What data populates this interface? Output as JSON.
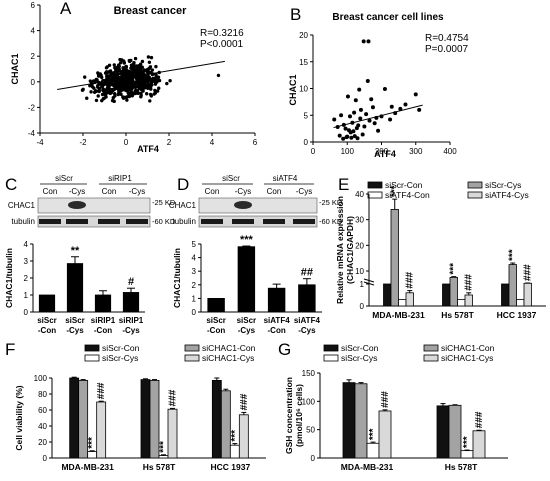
{
  "chart_data": [
    {
      "panel": "A",
      "type": "scatter",
      "title": "Breast cancer",
      "xlabel": "ATF4",
      "ylabel": "CHAC1",
      "xlim": [
        -4,
        6
      ],
      "ylim": [
        -4,
        6
      ],
      "xticks": [
        "-4",
        "-2",
        "0",
        "2",
        "4",
        "6"
      ],
      "yticks": [
        "-4",
        "-2",
        "0",
        "2",
        "4",
        "6"
      ],
      "stats": [
        "R=0.3216",
        "P<0.0001"
      ],
      "fit": {
        "x": [
          -3.2,
          4.6
        ],
        "y": [
          -0.6,
          1.6
        ]
      }
    },
    {
      "panel": "B",
      "type": "scatter",
      "title": "Breast cancer cell lines",
      "xlabel": "ATF4",
      "ylabel": "CHAC1",
      "xlim": [
        0,
        400
      ],
      "ylim": [
        0,
        20
      ],
      "xticks": [
        "0",
        "100",
        "200",
        "300",
        "400"
      ],
      "yticks": [
        "0",
        "5",
        "10",
        "15",
        "20"
      ],
      "stats": [
        "R=0.4754",
        "P=0.0007"
      ],
      "fit": {
        "x": [
          60,
          320
        ],
        "y": [
          2.7,
          6.9
        ]
      },
      "points": [
        [
          62,
          4.2
        ],
        [
          72,
          2.8
        ],
        [
          78,
          1.2
        ],
        [
          82,
          5.0
        ],
        [
          88,
          0.6
        ],
        [
          90,
          3.2
        ],
        [
          95,
          2.5
        ],
        [
          98,
          0.9
        ],
        [
          100,
          1.0
        ],
        [
          102,
          8.5
        ],
        [
          105,
          2.2
        ],
        [
          108,
          4.8
        ],
        [
          110,
          1.8
        ],
        [
          112,
          0.8
        ],
        [
          115,
          3.6
        ],
        [
          118,
          2.0
        ],
        [
          120,
          5.5
        ],
        [
          122,
          1.1
        ],
        [
          125,
          7.8
        ],
        [
          128,
          2.6
        ],
        [
          130,
          0.7
        ],
        [
          132,
          3.1
        ],
        [
          135,
          9.8
        ],
        [
          138,
          4.4
        ],
        [
          140,
          6.0
        ],
        [
          145,
          1.4
        ],
        [
          148,
          18.8
        ],
        [
          150,
          2.9
        ],
        [
          155,
          5.2
        ],
        [
          160,
          11.4
        ],
        [
          162,
          18.8
        ],
        [
          165,
          4.0
        ],
        [
          170,
          8.0
        ],
        [
          175,
          6.5
        ],
        [
          180,
          3.5
        ],
        [
          185,
          4.5
        ],
        [
          190,
          2.1
        ],
        [
          200,
          4.8
        ],
        [
          210,
          9.9
        ],
        [
          225,
          4.2
        ],
        [
          230,
          6.6
        ],
        [
          240,
          5.4
        ],
        [
          255,
          6.2
        ],
        [
          270,
          7.0
        ],
        [
          300,
          8.9
        ],
        [
          310,
          6.0
        ]
      ]
    },
    {
      "panel": "C",
      "type": "bar",
      "ylabel": "CHAC1/tubulin",
      "ylim": [
        0,
        4
      ],
      "yticks": [
        "0",
        "1",
        "2",
        "3",
        "4"
      ],
      "categories": [
        [
          "siScr",
          "-Con"
        ],
        [
          "siScr",
          "-Cys"
        ],
        [
          "siRIP1",
          "-Con"
        ],
        [
          "siRIP1",
          "-Cys"
        ]
      ],
      "values": [
        1.0,
        2.85,
        1.0,
        1.15
      ],
      "errors": [
        0,
        0.4,
        0.25,
        0.25
      ],
      "annotations": [
        "",
        "**",
        "",
        "#"
      ],
      "blot": {
        "groups": [
          "siScr",
          "siRIP1"
        ],
        "lanes": [
          "Con",
          "-Cys",
          "Con",
          "-Cys"
        ],
        "rows": [
          "CHAC1",
          "tubulin"
        ],
        "markers": [
          "-25 KD",
          "-60 KD"
        ]
      }
    },
    {
      "panel": "D",
      "type": "bar",
      "ylabel": "CHAC1/tubulin",
      "ylim": [
        0,
        5
      ],
      "yticks": [
        "0",
        "1",
        "2",
        "3",
        "4",
        "5"
      ],
      "categories": [
        [
          "siScr",
          "-Con"
        ],
        [
          "siScr",
          "-Cys"
        ],
        [
          "siATF4",
          "-Con"
        ],
        [
          "siATF4",
          "-Cys"
        ]
      ],
      "values": [
        1.0,
        4.8,
        1.75,
        2.0
      ],
      "errors": [
        0,
        0.05,
        0.3,
        0.45
      ],
      "annotations": [
        "",
        "***",
        "",
        "##"
      ],
      "blot": {
        "groups": [
          "siScr",
          "siATF4"
        ],
        "lanes": [
          "Con",
          "-Cys",
          "Con",
          "-Cys"
        ],
        "rows": [
          "CHAC1",
          "tubulin"
        ],
        "markers": [
          "-25 KD",
          "-60 KD"
        ]
      }
    },
    {
      "panel": "E",
      "type": "bar",
      "ylabel": [
        "Relative mRNA expression",
        "(CHAC1/GAPDH)"
      ],
      "ylim": [
        0,
        40
      ],
      "yticks": [
        "0",
        "1",
        "10",
        "20",
        "30",
        "40"
      ],
      "categories": [
        "MDA-MB-231",
        "Hs 578T",
        "HCC 1937"
      ],
      "series": [
        {
          "name": "siScr-Con",
          "color": "#111111",
          "values": [
            1,
            1,
            1
          ],
          "errors": [
            0,
            0,
            0
          ],
          "ann": [
            "",
            "",
            ""
          ]
        },
        {
          "name": "siScr-Cys",
          "color": "#a3a3a3",
          "values": [
            34,
            5.6,
            12.5
          ],
          "errors": [
            4,
            0.5,
            0.6
          ],
          "ann": [
            "***",
            "***",
            "***"
          ]
        },
        {
          "name": "siATF4-Con",
          "color": "#ffffff",
          "values": [
            0.3,
            0.3,
            0.3
          ],
          "errors": [
            0,
            0,
            0
          ],
          "ann": [
            "",
            "",
            ""
          ]
        },
        {
          "name": "siATF4-Cys",
          "color": "#d9d9d9",
          "values": [
            0.6,
            0.5,
            1.5
          ],
          "errors": [
            0.1,
            0.1,
            0.2
          ],
          "ann": [
            "###",
            "###",
            "###"
          ]
        }
      ]
    },
    {
      "panel": "F",
      "type": "bar",
      "ylabel": "Cell viability (%)",
      "ylim": [
        0,
        100
      ],
      "yticks": [
        "0",
        "20",
        "40",
        "60",
        "80",
        "100"
      ],
      "categories": [
        "MDA-MB-231",
        "Hs 578T",
        "HCC 1937"
      ],
      "series": [
        {
          "name": "siScr-Con",
          "color": "#111111",
          "values": [
            100,
            98,
            97
          ],
          "errors": [
            1,
            1,
            3
          ],
          "ann": [
            "",
            "",
            ""
          ]
        },
        {
          "name": "siCHAC1-Con",
          "color": "#a3a3a3",
          "values": [
            97,
            97,
            84
          ],
          "errors": [
            1,
            1,
            2
          ],
          "ann": [
            "",
            "",
            ""
          ]
        },
        {
          "name": "siScr-Cys",
          "color": "#ffffff",
          "values": [
            8,
            3,
            16
          ],
          "errors": [
            1,
            1,
            2
          ],
          "ann": [
            "***",
            "***",
            "***"
          ]
        },
        {
          "name": "siCHAC1-Cys",
          "color": "#d9d9d9",
          "values": [
            70,
            61,
            54
          ],
          "errors": [
            1,
            1,
            3
          ],
          "ann": [
            "###",
            "###",
            "###"
          ]
        }
      ]
    },
    {
      "panel": "G",
      "type": "bar",
      "ylabel": [
        "GSH concentration",
        "(pmol/10⁶ cells)"
      ],
      "ylim": [
        0,
        150
      ],
      "yticks": [
        "0",
        "50",
        "100",
        "150"
      ],
      "categories": [
        "MDA-MB-231",
        "Hs 578T"
      ],
      "series": [
        {
          "name": "siScr-Con",
          "color": "#111111",
          "values": [
            133,
            92
          ],
          "errors": [
            5,
            4
          ],
          "ann": [
            "",
            ""
          ]
        },
        {
          "name": "siCHAC1-Con",
          "color": "#a3a3a3",
          "values": [
            131,
            93
          ],
          "errors": [
            2,
            1
          ],
          "ann": [
            "",
            ""
          ]
        },
        {
          "name": "siScr-Cys",
          "color": "#ffffff",
          "values": [
            26,
            13
          ],
          "errors": [
            2,
            1
          ],
          "ann": [
            "***",
            "***"
          ]
        },
        {
          "name": "siCHAC1-Cys",
          "color": "#d9d9d9",
          "values": [
            83,
            48
          ],
          "errors": [
            2,
            1
          ],
          "ann": [
            "###",
            "###"
          ]
        }
      ]
    }
  ]
}
